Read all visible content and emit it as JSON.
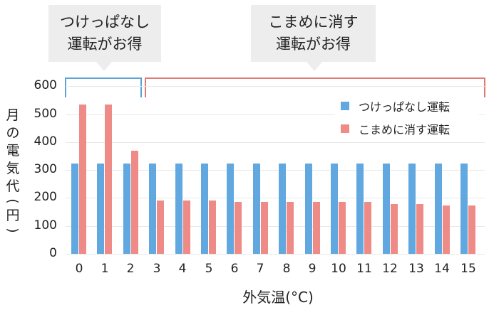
{
  "callouts": [
    {
      "line1": "つけっぱなし",
      "line2": "運転がお得"
    },
    {
      "line1": "こまめに消す",
      "line2": "運転がお得"
    }
  ],
  "colors": {
    "series_always_on": "#62a8e0",
    "series_frequent_off": "#ef8b86",
    "bracket_blue": "#5ba3d6",
    "bracket_red": "#e07a76",
    "callout_bg": "#ededed"
  },
  "legend": [
    {
      "label": "つけっぱなし運転"
    },
    {
      "label": "こまめに消す運転"
    }
  ],
  "axes": {
    "ylabel": "月の電気代(円)",
    "ylabel_chars": [
      "月",
      "の",
      "電",
      "気",
      "代",
      "(",
      "円",
      ")"
    ],
    "xlabel": "外気温(°C)",
    "yticks": [
      "0",
      "100",
      "200",
      "300",
      "400",
      "500",
      "600"
    ],
    "xticks": [
      "0",
      "1",
      "2",
      "3",
      "4",
      "5",
      "6",
      "7",
      "8",
      "9",
      "10",
      "11",
      "12",
      "13",
      "14",
      "15"
    ]
  },
  "chart_data": {
    "type": "bar",
    "title": "",
    "xlabel": "外気温(°C)",
    "ylabel": "月の電気代(円)",
    "ylim": [
      0,
      600
    ],
    "grid": true,
    "legend_position": "upper right",
    "categories": [
      "0",
      "1",
      "2",
      "3",
      "4",
      "5",
      "6",
      "7",
      "8",
      "9",
      "10",
      "11",
      "12",
      "13",
      "14",
      "15"
    ],
    "series": [
      {
        "name": "つけっぱなし運転",
        "values": [
          323,
          323,
          323,
          323,
          323,
          323,
          323,
          323,
          323,
          323,
          323,
          323,
          323,
          323,
          323,
          323
        ]
      },
      {
        "name": "こまめに消す運転",
        "values": [
          534,
          534,
          370,
          192,
          192,
          192,
          187,
          187,
          187,
          187,
          187,
          187,
          179,
          179,
          172,
          172
        ]
      }
    ],
    "annotations": [
      {
        "text": "つけっぱなし運転がお得",
        "range": [
          "0",
          "2"
        ]
      },
      {
        "text": "こまめに消す運転がお得",
        "range": [
          "3",
          "15"
        ]
      }
    ]
  }
}
